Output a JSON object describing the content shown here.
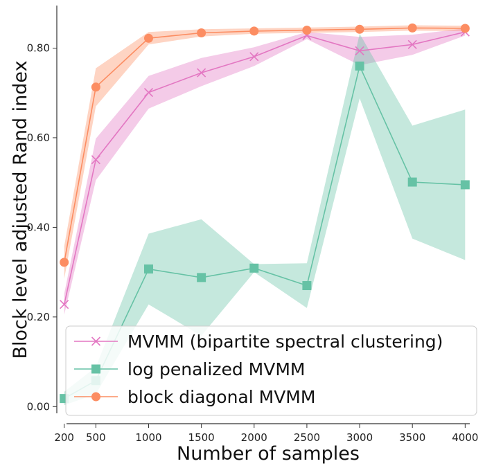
{
  "chart_data": {
    "type": "line",
    "title": "",
    "xlabel": "Number of samples",
    "ylabel": "Block level adjusted Rand index",
    "xlim": [
      130,
      4070
    ],
    "ylim": [
      -0.015,
      0.895
    ],
    "x": [
      200,
      500,
      1000,
      1500,
      2000,
      2500,
      3000,
      3500,
      4000
    ],
    "x_tick_labels": [
      "200",
      "500",
      "1000",
      "1500",
      "2000",
      "2500",
      "3000",
      "3500",
      "4000"
    ],
    "y_ticks": [
      0.0,
      0.2,
      0.4,
      0.6,
      0.8
    ],
    "y_tick_labels": [
      "0.00",
      "0.20",
      "0.40",
      "0.60",
      "0.80"
    ],
    "legend_position": "lower-left",
    "series": [
      {
        "name": "MVMM (bipartite spectral clustering)",
        "color": "#e377c2",
        "marker": "x",
        "values": [
          0.228,
          0.551,
          0.701,
          0.745,
          0.781,
          0.828,
          0.794,
          0.808,
          0.836
        ],
        "lower": [
          0.205,
          0.505,
          0.665,
          0.715,
          0.76,
          0.82,
          0.762,
          0.785,
          0.828
        ],
        "upper": [
          0.252,
          0.598,
          0.738,
          0.778,
          0.802,
          0.836,
          0.825,
          0.83,
          0.844
        ]
      },
      {
        "name": "log penalized MVMM",
        "color": "#66c2a5",
        "marker": "s",
        "values": [
          0.018,
          0.058,
          0.307,
          0.288,
          0.309,
          0.27,
          0.76,
          0.501,
          0.495
        ],
        "lower": [
          0.003,
          0.028,
          0.228,
          0.158,
          0.3,
          0.22,
          0.688,
          0.375,
          0.327
        ],
        "upper": [
          0.033,
          0.088,
          0.386,
          0.418,
          0.318,
          0.32,
          0.832,
          0.627,
          0.663
        ]
      },
      {
        "name": "block diagonal MVMM",
        "color": "#fc8d62",
        "marker": "o",
        "values": [
          0.322,
          0.713,
          0.822,
          0.834,
          0.838,
          0.84,
          0.842,
          0.845,
          0.844
        ],
        "lower": [
          0.285,
          0.67,
          0.808,
          0.826,
          0.832,
          0.834,
          0.836,
          0.839,
          0.838
        ],
        "upper": [
          0.358,
          0.755,
          0.836,
          0.842,
          0.844,
          0.846,
          0.848,
          0.851,
          0.85
        ]
      }
    ]
  }
}
